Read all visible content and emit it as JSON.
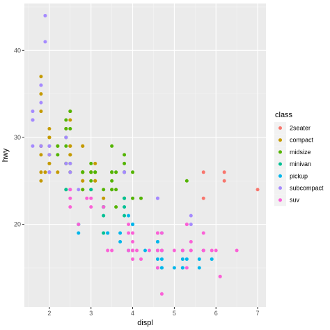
{
  "chart_data": {
    "type": "scatter",
    "title": "",
    "xlabel": "displ",
    "ylabel": "hwy",
    "xlim": [
      1.4,
      7.2
    ],
    "ylim": [
      10.5,
      45.4
    ],
    "xticks": [
      2,
      3,
      4,
      5,
      6,
      7
    ],
    "yticks": [
      20,
      30,
      40
    ],
    "grid": true,
    "legend": {
      "title": "class",
      "position": "right"
    },
    "series": [
      {
        "name": "2seater",
        "color": "#F8766D",
        "points": [
          [
            5.7,
            26
          ],
          [
            5.7,
            23
          ],
          [
            6.2,
            26
          ],
          [
            6.2,
            25
          ],
          [
            7.0,
            24
          ]
        ]
      },
      {
        "name": "compact",
        "color": "#C49A00",
        "points": [
          [
            1.8,
            29
          ],
          [
            1.8,
            29
          ],
          [
            2.0,
            31
          ],
          [
            2.0,
            30
          ],
          [
            2.8,
            26
          ],
          [
            2.8,
            26
          ],
          [
            3.1,
            27
          ],
          [
            1.8,
            26
          ],
          [
            1.8,
            25
          ],
          [
            2.0,
            28
          ],
          [
            2.0,
            27
          ],
          [
            2.8,
            25
          ],
          [
            2.8,
            25
          ],
          [
            3.1,
            25
          ],
          [
            3.1,
            25
          ],
          [
            2.2,
            26
          ],
          [
            2.2,
            29
          ],
          [
            2.4,
            27
          ],
          [
            2.4,
            31
          ],
          [
            3.0,
            26
          ],
          [
            3.0,
            26
          ],
          [
            3.3,
            23
          ],
          [
            1.8,
            29
          ],
          [
            1.8,
            29
          ],
          [
            1.8,
            29
          ],
          [
            1.8,
            29
          ],
          [
            1.9,
            26
          ],
          [
            2.0,
            28
          ],
          [
            2.5,
            32
          ],
          [
            2.5,
            33
          ],
          [
            2.5,
            26
          ],
          [
            1.8,
            37
          ],
          [
            1.8,
            35
          ],
          [
            1.8,
            33
          ],
          [
            2.0,
            26
          ],
          [
            2.0,
            29
          ],
          [
            2.5,
            28
          ],
          [
            2.5,
            29
          ],
          [
            1.8,
            28
          ],
          [
            2.8,
            29
          ],
          [
            2.8,
            24
          ],
          [
            2.8,
            29
          ],
          [
            2.0,
            28
          ],
          [
            2.0,
            30
          ],
          [
            2.5,
            29
          ],
          [
            2.5,
            28
          ],
          [
            2.0,
            27
          ]
        ]
      },
      {
        "name": "midsize",
        "color": "#53B400",
        "points": [
          [
            2.4,
            27
          ],
          [
            2.4,
            30
          ],
          [
            3.1,
            26
          ],
          [
            3.5,
            29
          ],
          [
            3.6,
            26
          ],
          [
            2.4,
            24
          ],
          [
            3.0,
            24
          ],
          [
            3.3,
            22
          ],
          [
            3.3,
            22
          ],
          [
            3.3,
            24
          ],
          [
            3.8,
            26
          ],
          [
            3.8,
            26
          ],
          [
            3.8,
            27
          ],
          [
            3.8,
            26
          ],
          [
            4.0,
            26
          ],
          [
            2.4,
            29
          ],
          [
            2.5,
            31
          ],
          [
            2.5,
            33
          ],
          [
            3.5,
            26
          ],
          [
            3.5,
            24
          ],
          [
            3.5,
            25
          ],
          [
            2.2,
            28
          ],
          [
            2.2,
            29
          ],
          [
            2.4,
            31
          ],
          [
            2.4,
            32
          ],
          [
            3.0,
            27
          ],
          [
            3.0,
            26
          ],
          [
            3.5,
            26
          ],
          [
            2.8,
            26
          ],
          [
            2.8,
            24
          ],
          [
            3.0,
            25
          ],
          [
            3.1,
            26
          ],
          [
            3.6,
            22
          ],
          [
            3.6,
            24
          ],
          [
            4.0,
            23
          ],
          [
            2.4,
            27
          ],
          [
            2.8,
            26
          ],
          [
            3.5,
            24
          ],
          [
            5.3,
            25
          ],
          [
            2.5,
            27
          ],
          [
            2.5,
            26
          ],
          [
            3.8,
            28
          ],
          [
            3.8,
            23
          ],
          [
            4.2,
            23
          ]
        ]
      },
      {
        "name": "minivan",
        "color": "#00C094",
        "points": [
          [
            2.4,
            24
          ],
          [
            3.0,
            24
          ],
          [
            3.3,
            22
          ],
          [
            3.3,
            19
          ],
          [
            3.3,
            22
          ],
          [
            3.3,
            21
          ],
          [
            3.3,
            22
          ],
          [
            3.8,
            21
          ],
          [
            3.8,
            23
          ],
          [
            3.8,
            22
          ],
          [
            4.0,
            17
          ],
          [
            2.7,
            20
          ]
        ]
      },
      {
        "name": "pickup",
        "color": "#00B6EB",
        "points": [
          [
            3.7,
            19
          ],
          [
            3.7,
            18
          ],
          [
            3.9,
            17
          ],
          [
            3.9,
            17
          ],
          [
            4.7,
            19
          ],
          [
            4.7,
            15
          ],
          [
            4.7,
            15
          ],
          [
            5.2,
            17
          ],
          [
            5.2,
            16
          ],
          [
            5.7,
            17
          ],
          [
            5.9,
            16
          ],
          [
            4.7,
            16
          ],
          [
            4.7,
            17
          ],
          [
            5.2,
            15
          ],
          [
            5.2,
            15
          ],
          [
            5.3,
            16
          ],
          [
            5.6,
            16
          ],
          [
            5.6,
            15
          ],
          [
            5.0,
            15
          ],
          [
            3.9,
            21
          ],
          [
            4.0,
            20
          ],
          [
            4.6,
            18
          ],
          [
            4.6,
            16
          ],
          [
            4.6,
            18
          ],
          [
            4.6,
            17
          ],
          [
            4.6,
            15
          ],
          [
            4.3,
            17
          ],
          [
            4.0,
            20
          ],
          [
            3.4,
            19
          ],
          [
            2.7,
            20
          ],
          [
            2.7,
            19
          ],
          [
            3.4,
            19
          ],
          [
            4.0,
            20
          ]
        ]
      },
      {
        "name": "subcompact",
        "color": "#A58AFF",
        "points": [
          [
            1.8,
            29
          ],
          [
            1.8,
            29
          ],
          [
            1.6,
            33
          ],
          [
            1.6,
            32
          ],
          [
            1.6,
            32
          ],
          [
            1.6,
            29
          ],
          [
            1.6,
            32
          ],
          [
            1.8,
            34
          ],
          [
            1.8,
            36
          ],
          [
            1.8,
            36
          ],
          [
            2.0,
            29
          ],
          [
            2.0,
            26
          ],
          [
            2.4,
            27
          ],
          [
            2.4,
            30
          ],
          [
            3.8,
            26
          ],
          [
            3.8,
            26
          ],
          [
            4.6,
            23
          ],
          [
            4.6,
            23
          ],
          [
            5.4,
            21
          ],
          [
            5.4,
            20
          ],
          [
            1.9,
            44
          ],
          [
            1.9,
            41
          ],
          [
            2.0,
            29
          ],
          [
            2.0,
            26
          ],
          [
            2.0,
            28
          ],
          [
            2.5,
            27
          ],
          [
            2.5,
            26
          ],
          [
            2.7,
            24
          ]
        ]
      },
      {
        "name": "suv",
        "color": "#FB61D7",
        "points": [
          [
            5.3,
            20
          ],
          [
            5.3,
            15
          ],
          [
            5.3,
            20
          ],
          [
            5.7,
            17
          ],
          [
            6.0,
            17
          ],
          [
            5.7,
            19
          ],
          [
            5.7,
            17
          ],
          [
            6.1,
            14
          ],
          [
            3.9,
            19
          ],
          [
            3.9,
            17
          ],
          [
            4.0,
            17
          ],
          [
            4.0,
            19
          ],
          [
            4.6,
            19
          ],
          [
            4.6,
            17
          ],
          [
            4.7,
            17
          ],
          [
            4.7,
            17
          ],
          [
            4.7,
            12
          ],
          [
            5.2,
            17
          ],
          [
            5.7,
            17
          ],
          [
            5.9,
            17
          ],
          [
            4.6,
            17
          ],
          [
            5.4,
            17
          ],
          [
            5.4,
            18
          ],
          [
            6.5,
            17
          ],
          [
            4.0,
            16
          ],
          [
            4.2,
            16
          ],
          [
            4.4,
            17
          ],
          [
            4.6,
            15
          ],
          [
            5.4,
            17
          ],
          [
            4.0,
            17
          ],
          [
            4.0,
            19
          ],
          [
            4.6,
            19
          ],
          [
            5.0,
            17
          ],
          [
            4.0,
            18
          ],
          [
            4.7,
            19
          ],
          [
            2.5,
            24
          ],
          [
            2.5,
            23
          ],
          [
            2.9,
            23
          ],
          [
            3.0,
            22
          ],
          [
            3.3,
            22
          ],
          [
            3.5,
            17
          ],
          [
            3.9,
            20
          ],
          [
            4.0,
            17
          ],
          [
            4.1,
            17
          ],
          [
            5.7,
            17
          ],
          [
            6.1,
            14
          ],
          [
            3.0,
            23
          ],
          [
            2.5,
            22
          ],
          [
            2.7,
            20
          ],
          [
            5.2,
            17
          ],
          [
            2.5,
            24
          ],
          [
            3.4,
            17
          ]
        ]
      }
    ]
  }
}
